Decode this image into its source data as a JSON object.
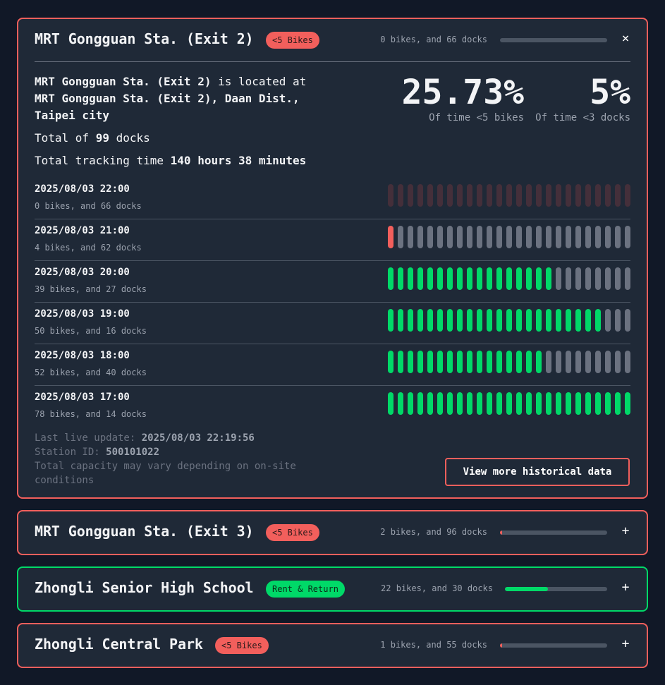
{
  "colors": {
    "alert": "#f25f5c",
    "ok": "#00d968",
    "bar_empty": "#6b7280",
    "bar_none": "#442f3a",
    "track": "#4b5563"
  },
  "stations": [
    {
      "name": "MRT Gongguan Sta. (Exit 2)",
      "badge": "<5 Bikes",
      "status": "alert",
      "summary": "0 bikes, and 66 docks",
      "fill_fraction": 0,
      "expanded": true,
      "toggle_icon": "×",
      "description": {
        "name_bold": "MRT Gongguan Sta. (Exit 2)",
        "located_at": " is located at ",
        "address": "MRT Gongguan Sta. (Exit 2), Daan Dist., Taipei city"
      },
      "total_docks": {
        "prefix": "Total of ",
        "value": "99",
        "suffix": " docks"
      },
      "tracking": {
        "prefix": "Total tracking time ",
        "value": "140 hours 38 minutes"
      },
      "stats": [
        {
          "value": "25.73%",
          "label": "Of time <5 bikes"
        },
        {
          "value": "5%",
          "label": "Of time <3 docks"
        }
      ],
      "history": [
        {
          "time": "2025/08/03 22:00",
          "summary": "0 bikes, and 66 docks",
          "filled": 0,
          "state": "none"
        },
        {
          "time": "2025/08/03 21:00",
          "summary": "4 bikes, and 62 docks",
          "filled": 1,
          "state": "alert"
        },
        {
          "time": "2025/08/03 20:00",
          "summary": "39 bikes, and 27 docks",
          "filled": 17,
          "state": "ok"
        },
        {
          "time": "2025/08/03 19:00",
          "summary": "50 bikes, and 16 docks",
          "filled": 22,
          "state": "ok"
        },
        {
          "time": "2025/08/03 18:00",
          "summary": "52 bikes, and 40 docks",
          "filled": 16,
          "state": "ok"
        },
        {
          "time": "2025/08/03 17:00",
          "summary": "78 bikes, and 14 docks",
          "filled": 25,
          "state": "ok"
        }
      ],
      "footer": {
        "update_label": "Last live update: ",
        "update_value": "2025/08/03 22:19:56",
        "id_label": "Station ID: ",
        "id_value": "500101022",
        "note": "Total capacity may vary depending on on-site conditions"
      },
      "button": "View more historical data"
    },
    {
      "name": "MRT Gongguan Sta. (Exit 3)",
      "badge": "<5 Bikes",
      "status": "alert",
      "summary": "2 bikes, and 96 docks",
      "fill_fraction": 0.02,
      "toggle_icon": "+"
    },
    {
      "name": "Zhongli Senior High School",
      "badge": "Rent & Return",
      "status": "ok",
      "summary": "22 bikes, and 30 docks",
      "fill_fraction": 0.42,
      "toggle_icon": "+"
    },
    {
      "name": "Zhongli Central Park",
      "badge": "<5 Bikes",
      "status": "alert",
      "summary": "1 bikes, and 55 docks",
      "fill_fraction": 0.02,
      "toggle_icon": "+"
    }
  ]
}
